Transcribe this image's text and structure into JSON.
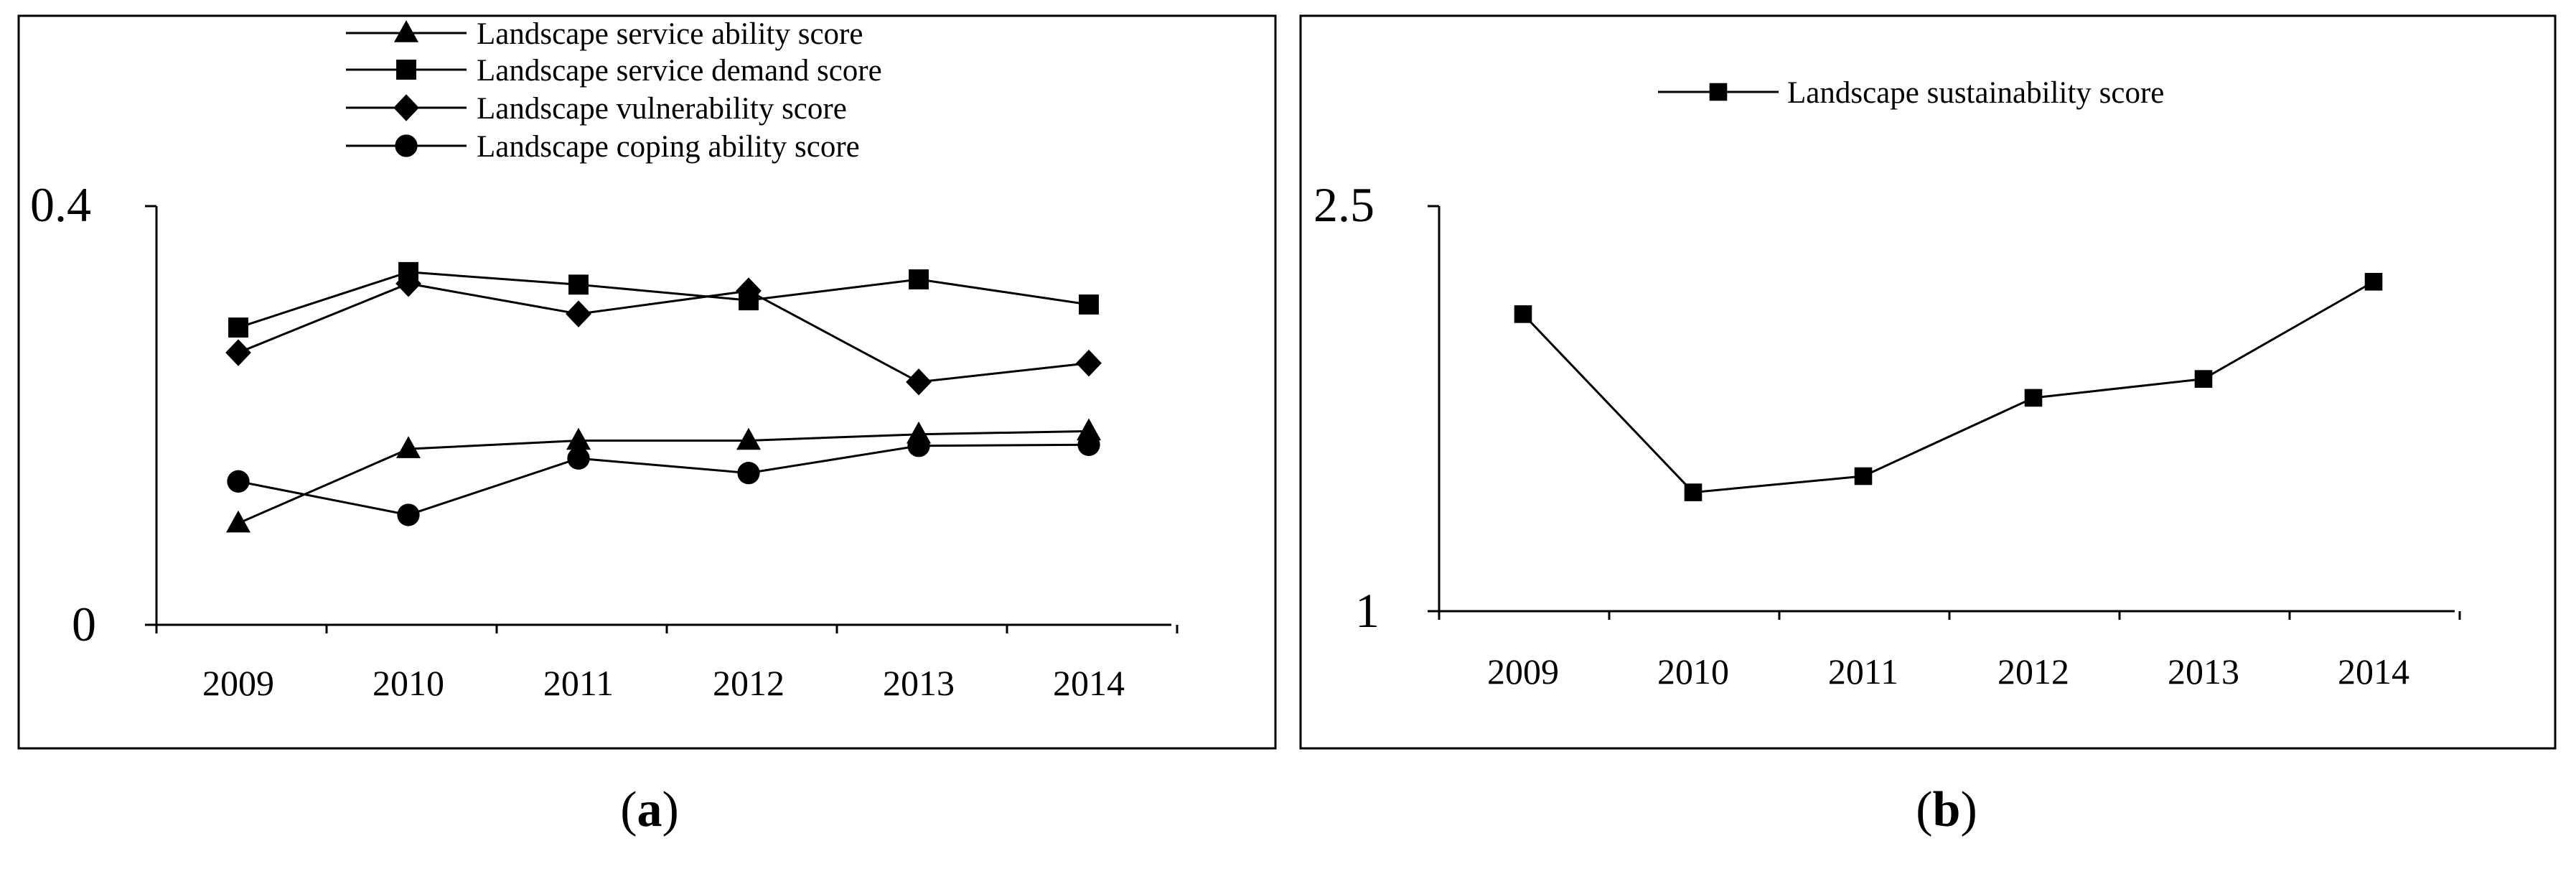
{
  "chart_data": [
    {
      "panel": "(a)",
      "panel_letter": "a",
      "type": "line",
      "categories": [
        "2009",
        "2010",
        "2011",
        "2012",
        "2013",
        "2014"
      ],
      "y_tick_labels": [
        "0.4",
        "0"
      ],
      "ylim": [
        0,
        0.4
      ],
      "grid": false,
      "legend_position": "top",
      "series": [
        {
          "name": "Landscape service ability score",
          "marker": "triangle",
          "values": [
            0.097,
            0.168,
            0.176,
            0.176,
            0.182,
            0.185
          ]
        },
        {
          "name": "Landscape service demand score",
          "marker": "square",
          "values": [
            0.284,
            0.337,
            0.325,
            0.31,
            0.33,
            0.306
          ]
        },
        {
          "name": "Landscape vulnerability score",
          "marker": "diamond",
          "values": [
            0.26,
            0.326,
            0.297,
            0.319,
            0.232,
            0.25
          ]
        },
        {
          "name": "Landscape coping ability score",
          "marker": "circle",
          "values": [
            0.137,
            0.105,
            0.159,
            0.145,
            0.171,
            0.172
          ]
        }
      ]
    },
    {
      "panel": "(b)",
      "panel_letter": "b",
      "type": "line",
      "categories": [
        "2009",
        "2010",
        "2011",
        "2012",
        "2013",
        "2014"
      ],
      "y_tick_labels": [
        "2.5",
        "1"
      ],
      "ylim": [
        1,
        2.5
      ],
      "grid": false,
      "legend_position": "top",
      "series": [
        {
          "name": "Landscape sustainability score",
          "marker": "square",
          "values": [
            2.1,
            1.44,
            1.5,
            1.79,
            1.86,
            2.22
          ]
        }
      ]
    }
  ]
}
